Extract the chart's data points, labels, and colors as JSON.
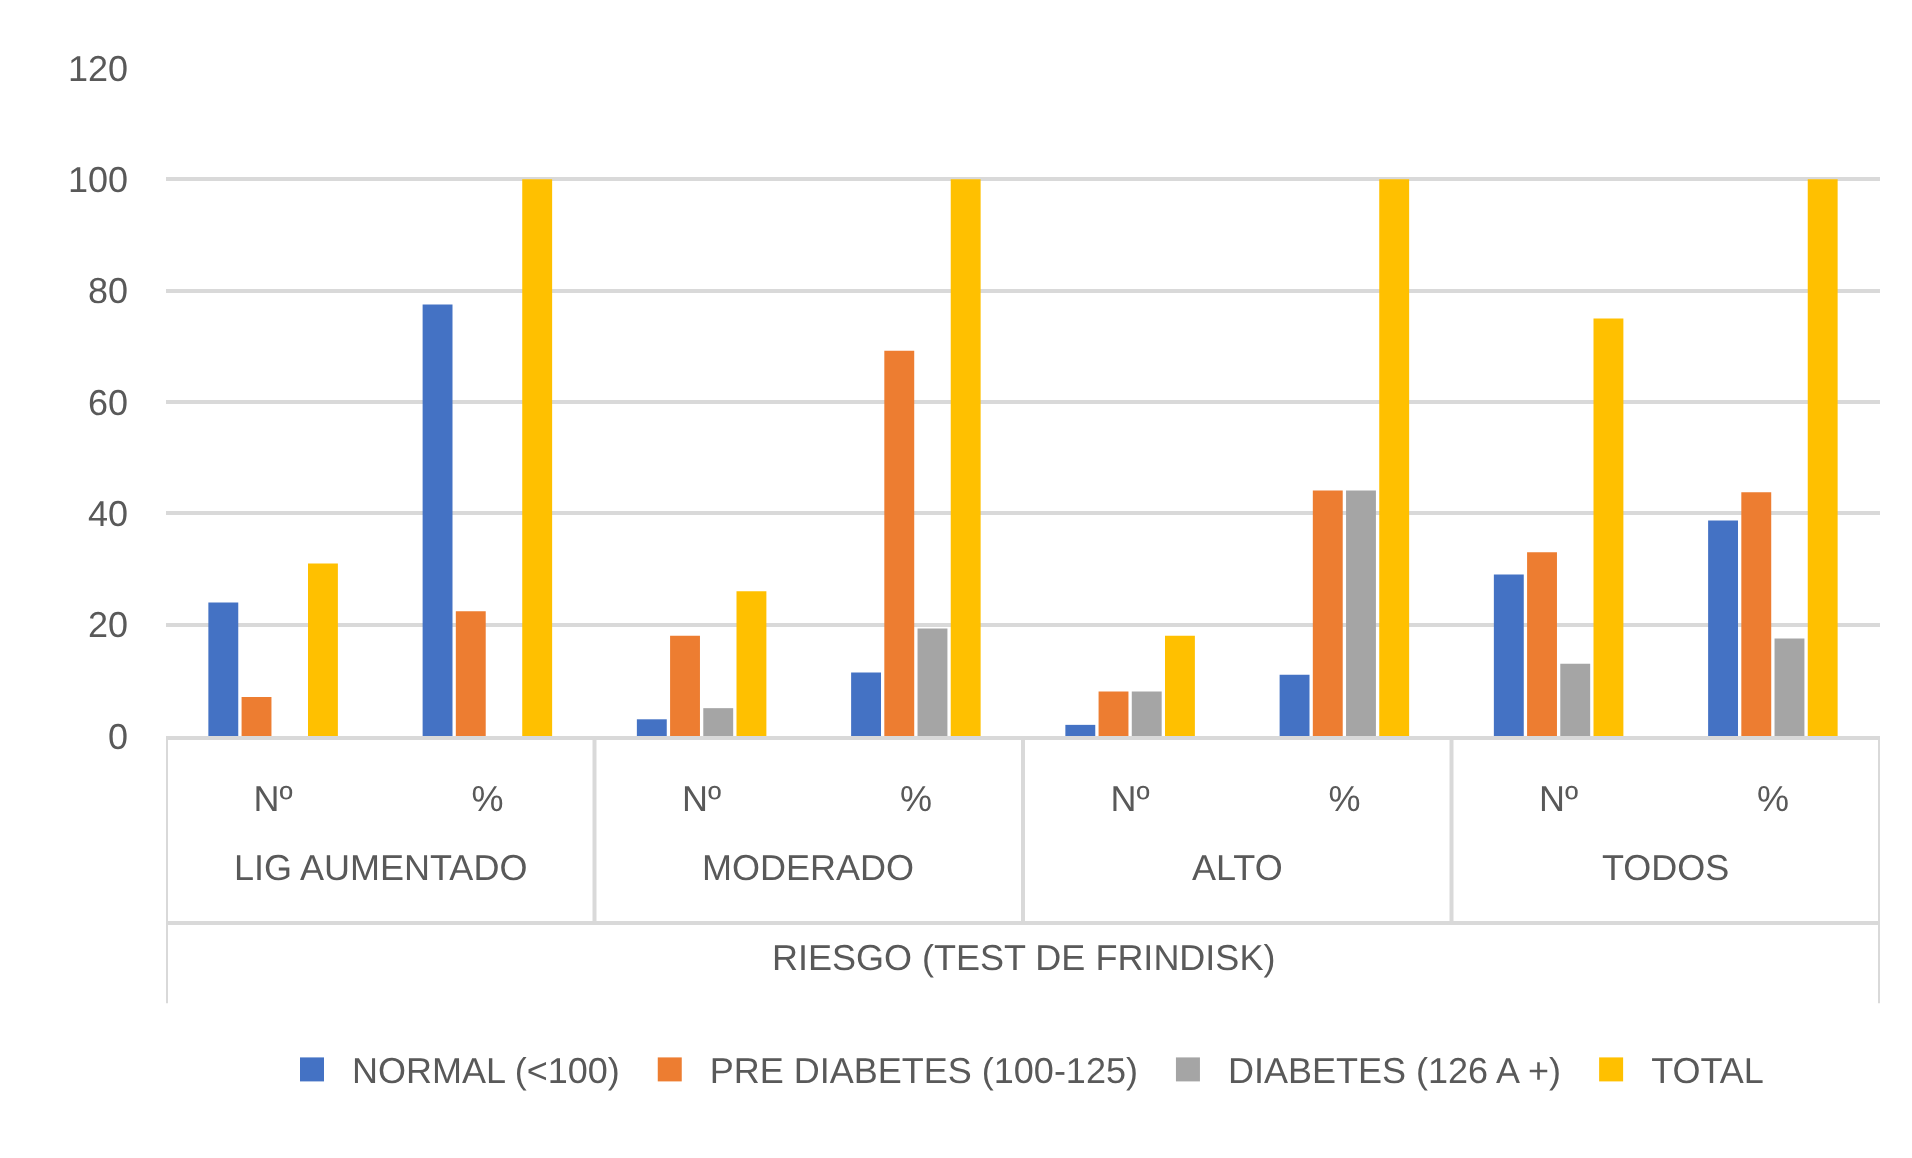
{
  "chart_data": {
    "type": "bar",
    "xlabel": "RIESGO (TEST DE FRINDISK)",
    "categories": [
      "Nº",
      "%",
      "Nº",
      "%",
      "Nº",
      "%",
      "Nº",
      "%"
    ],
    "annotations": [
      "LIG AUMENTADO",
      "MODERADO",
      "ALTO",
      "TODOS"
    ],
    "series": [
      {
        "name": "NORMAL (<100)",
        "color": "#4472c4",
        "values": [
          24,
          77.5,
          3,
          11.4,
          2,
          11,
          29,
          38.7
        ]
      },
      {
        "name": "PRE DIABETES (100-125)",
        "color": "#ed7d31",
        "values": [
          7,
          22.4,
          18,
          69.2,
          8,
          44.1,
          33,
          43.8
        ]
      },
      {
        "name": "DIABETES (126 A +)",
        "color": "#a5a5a5",
        "values": [
          null,
          null,
          5,
          19.3,
          8,
          44.1,
          13,
          17.5
        ]
      },
      {
        "name": "TOTAL",
        "color": "#ffc000",
        "values": [
          31,
          100,
          26,
          100,
          18,
          100,
          75,
          100
        ]
      }
    ],
    "ylim": [
      0,
      120
    ],
    "yticks": [
      0,
      20,
      40,
      60,
      80,
      100,
      120
    ],
    "grid": "y",
    "legend": "bottom"
  }
}
